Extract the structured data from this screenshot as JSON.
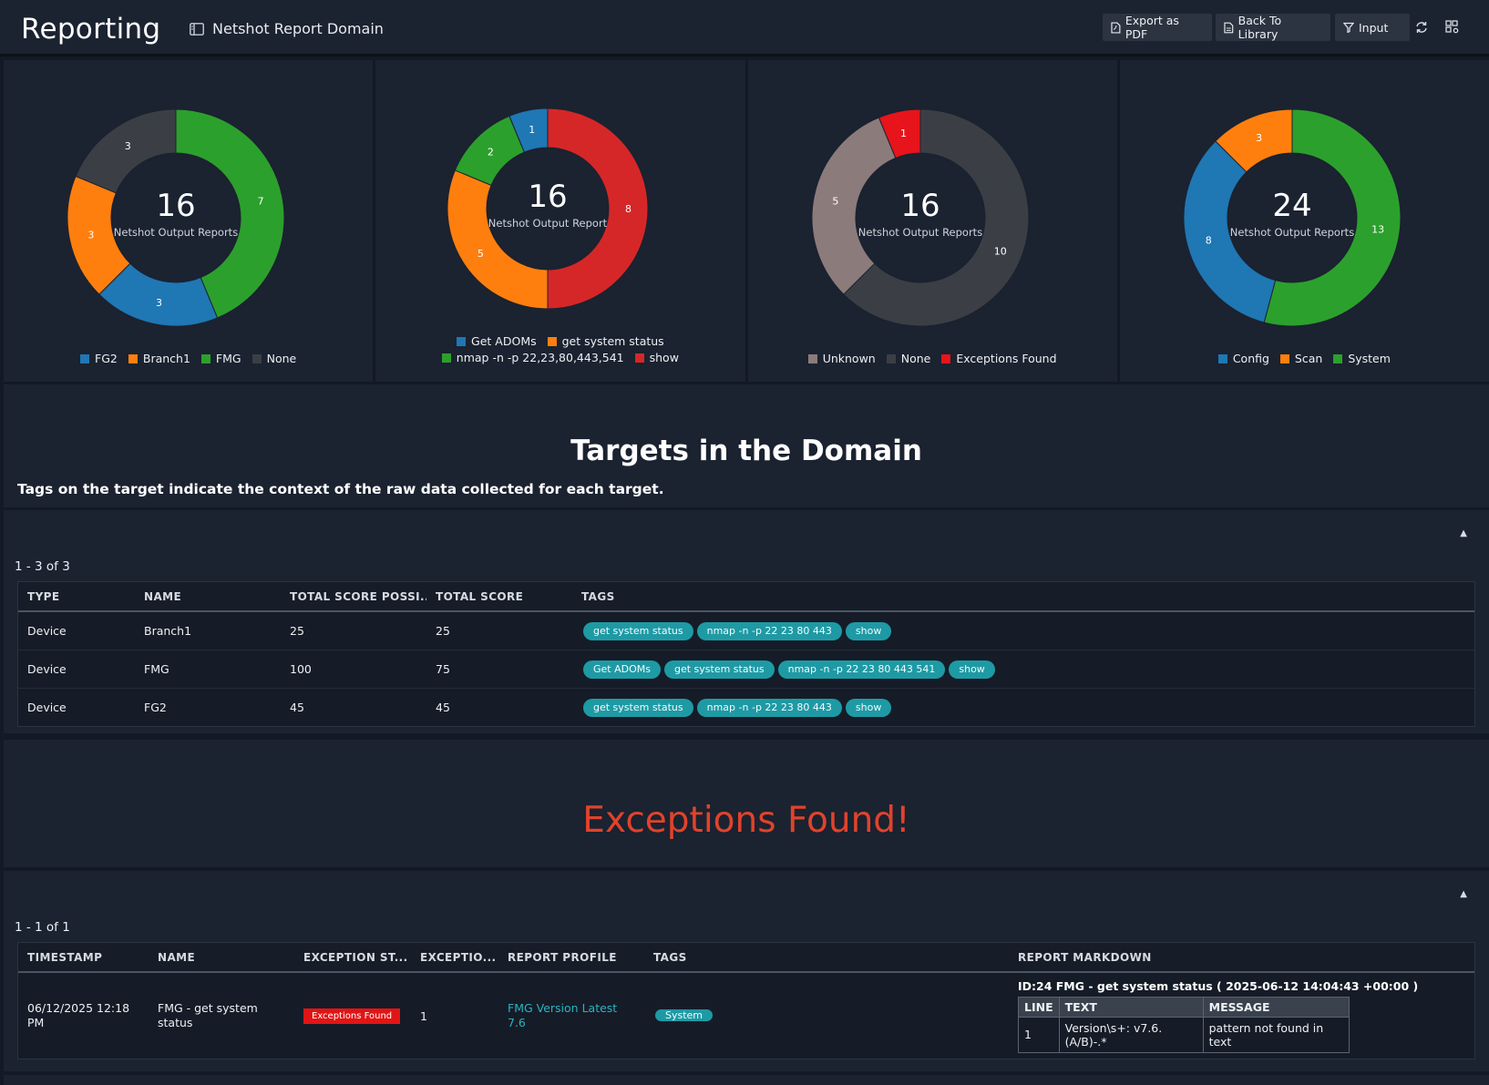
{
  "header": {
    "app_title": "Reporting",
    "report_name": "Netshot Report Domain",
    "buttons": {
      "export_pdf": "Export as PDF",
      "back_library": "Back To Library",
      "input": "Input"
    },
    "icons": [
      "file-pdf-icon",
      "book-icon",
      "filter-icon",
      "refresh-icon",
      "layout-settings-icon"
    ]
  },
  "chart_data": [
    {
      "type": "pie",
      "total": "16",
      "center_label": "Netshot Output Reports",
      "slices": [
        {
          "label": "FMG",
          "value": 7,
          "color": "#2ca02c"
        },
        {
          "label": "FG2",
          "value": 3,
          "color": "#1f77b4"
        },
        {
          "label": "Branch1",
          "value": 3,
          "color": "#ff7f0e"
        },
        {
          "label": "None",
          "value": 3,
          "color": "#3b3f45"
        }
      ],
      "legend": [
        {
          "label": "FG2",
          "color": "#1f77b4"
        },
        {
          "label": "Branch1",
          "color": "#ff7f0e"
        },
        {
          "label": "FMG",
          "color": "#2ca02c"
        },
        {
          "label": "None",
          "color": "#3b3f45"
        }
      ]
    },
    {
      "type": "pie",
      "total": "16",
      "center_label": "Netshot Output Report",
      "slices": [
        {
          "label": "show",
          "value": 8,
          "color": "#d62728"
        },
        {
          "label": "get system status",
          "value": 5,
          "color": "#ff7f0e"
        },
        {
          "label": "nmap -n -p 22,23,80,443,541",
          "value": 2,
          "color": "#2ca02c"
        },
        {
          "label": "Get ADOMs",
          "value": 1,
          "color": "#1f77b4"
        }
      ],
      "legend": [
        {
          "label": "Get ADOMs",
          "color": "#1f77b4"
        },
        {
          "label": "get system status",
          "color": "#ff7f0e"
        },
        {
          "label": "nmap -n -p 22,23,80,443,541",
          "color": "#2ca02c"
        },
        {
          "label": "show",
          "color": "#d62728"
        }
      ]
    },
    {
      "type": "pie",
      "total": "16",
      "center_label": "Netshot Output Reports",
      "slices": [
        {
          "label": "None",
          "value": 10,
          "color": "#3b3f45"
        },
        {
          "label": "Unknown",
          "value": 5,
          "color": "#8c7b7b"
        },
        {
          "label": "Exceptions Found",
          "value": 1,
          "color": "#e8141b"
        }
      ],
      "legend": [
        {
          "label": "Unknown",
          "color": "#8c7b7b"
        },
        {
          "label": "None",
          "color": "#3b3f45"
        },
        {
          "label": "Exceptions Found",
          "color": "#e8141b"
        }
      ]
    },
    {
      "type": "pie",
      "total": "24",
      "center_label": "Netshot Output Reports",
      "slices": [
        {
          "label": "System",
          "value": 13,
          "color": "#2ca02c"
        },
        {
          "label": "Config",
          "value": 8,
          "color": "#1f77b4"
        },
        {
          "label": "Scan",
          "value": 3,
          "color": "#ff7f0e"
        }
      ],
      "legend": [
        {
          "label": "Config",
          "color": "#1f77b4"
        },
        {
          "label": "Scan",
          "color": "#ff7f0e"
        },
        {
          "label": "System",
          "color": "#2ca02c"
        }
      ]
    }
  ],
  "targets": {
    "title": "Targets in the Domain",
    "subtitle": "Tags on the target indicate the context of the raw data collected for each target.",
    "count": "1 - 3 of 3",
    "columns": [
      "TYPE",
      "NAME",
      "TOTAL SCORE POSSI...",
      "TOTAL SCORE",
      "TAGS"
    ],
    "rows": [
      {
        "type": "Device",
        "name": "Branch1",
        "possible": "25",
        "score": "25",
        "tags": [
          "get system status",
          "nmap -n -p 22 23 80 443",
          "show"
        ]
      },
      {
        "type": "Device",
        "name": "FMG",
        "possible": "100",
        "score": "75",
        "tags": [
          "Get ADOMs",
          "get system status",
          "nmap -n -p 22 23 80 443 541",
          "show"
        ]
      },
      {
        "type": "Device",
        "name": "FG2",
        "possible": "45",
        "score": "45",
        "tags": [
          "get system status",
          "nmap -n -p 22 23 80 443",
          "show"
        ]
      }
    ]
  },
  "exceptions": {
    "title": "Exceptions Found!",
    "title_color": "#e0432b",
    "count": "1 - 1 of 1",
    "columns": [
      "TIMESTAMP",
      "NAME",
      "EXCEPTION ST...",
      "EXCEPTIO...",
      "REPORT PROFILE",
      "TAGS",
      "REPORT MARKDOWN"
    ],
    "row": {
      "timestamp_line1": "06/12/2025 12:18",
      "timestamp_line2": "PM",
      "name_line1": "FMG - get system",
      "name_line2": "status",
      "status": "Exceptions Found",
      "exceptions": "1",
      "profile_line1": "FMG Version Latest",
      "profile_line2": "7.6",
      "tag": "System",
      "markdown_title": "ID:24 FMG - get system status ( 2025-06-12 14:04:43 +00:00 )",
      "markdown_headers": [
        "LINE",
        "TEXT",
        "MESSAGE"
      ],
      "markdown_row": [
        "1",
        "Version\\s+: v7.6.(A/B)-.*",
        "pattern not found in text"
      ]
    }
  }
}
